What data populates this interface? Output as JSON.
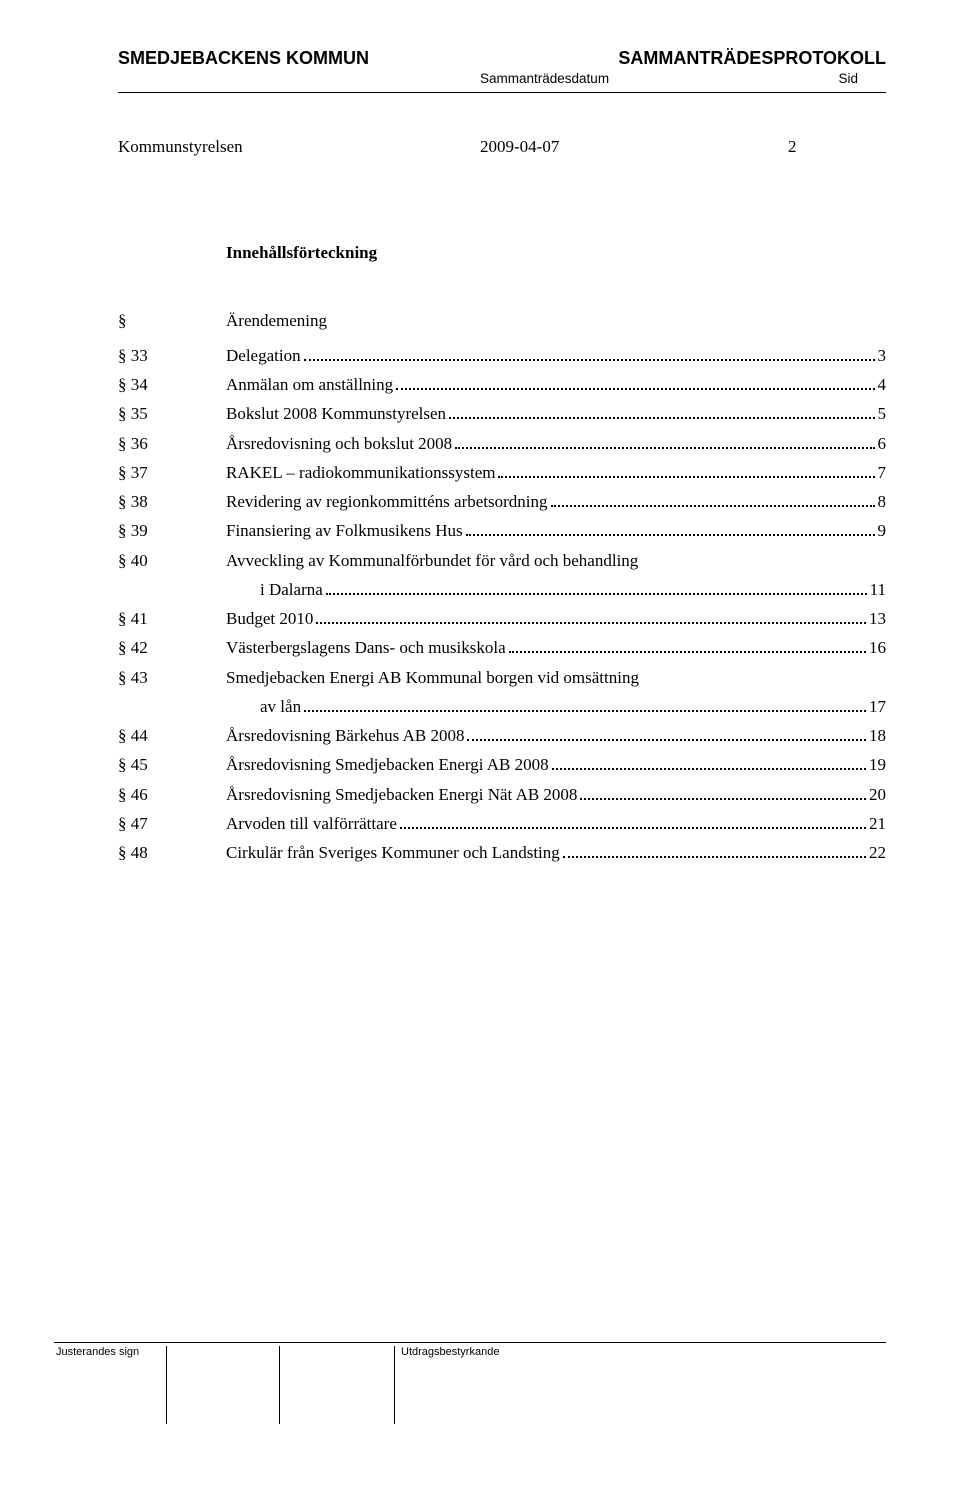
{
  "header": {
    "org_left": "SMEDJEBACKENS KOMMUN",
    "org_right": "SAMMANTRÄDESPROTOKOLL",
    "sub_left": "Sammanträdesdatum",
    "sub_right": "Sid"
  },
  "meeting": {
    "name": "Kommunstyrelsen",
    "date": "2009-04-07",
    "page": "2"
  },
  "toc": {
    "title": "Innehållsförteckning",
    "section_symbol": "§",
    "heading_label": "Ärendemening",
    "items": [
      {
        "section": "§ 33",
        "text": "Delegation",
        "page": "3"
      },
      {
        "section": "§ 34",
        "text": "Anmälan om anställning",
        "page": "4"
      },
      {
        "section": "§ 35",
        "text": "Bokslut 2008 Kommunstyrelsen",
        "page": "5"
      },
      {
        "section": "§ 36",
        "text": "Årsredovisning och bokslut 2008",
        "page": "6"
      },
      {
        "section": "§ 37",
        "text": "RAKEL – radiokommunikationssystem",
        "page": "7"
      },
      {
        "section": "§ 38",
        "text": "Revidering av regionkommitténs arbetsordning",
        "page": "8"
      },
      {
        "section": "§ 39",
        "text": "Finansiering av Folkmusikens Hus",
        "page": "9"
      },
      {
        "section": "§ 40",
        "text_line1": "Avveckling av Kommunalförbundet för vård och behandling",
        "text_line2": "i Dalarna",
        "page": "11",
        "multiline": true
      },
      {
        "section": "§ 41",
        "text": "Budget 2010",
        "page": "13"
      },
      {
        "section": "§ 42",
        "text": "Västerbergslagens Dans- och musikskola",
        "page": "16"
      },
      {
        "section": "§ 43",
        "text_line1": "Smedjebacken Energi AB Kommunal borgen vid omsättning",
        "text_line2": "av lån",
        "page": "17",
        "multiline": true
      },
      {
        "section": "§ 44",
        "text": "Årsredovisning Bärkehus AB 2008",
        "page": "18"
      },
      {
        "section": "§ 45",
        "text": "Årsredovisning Smedjebacken Energi AB 2008",
        "page": "19"
      },
      {
        "section": "§ 46",
        "text": "Årsredovisning Smedjebacken Energi Nät AB 2008",
        "page": "20"
      },
      {
        "section": "§ 47",
        "text": "Arvoden till valförrättare",
        "page": "21"
      },
      {
        "section": "§ 48",
        "text": "Cirkulär från Sveriges Kommuner och Landsting",
        "page": "22"
      }
    ]
  },
  "footer": {
    "left_label": "Justerandes sign",
    "right_label": "Utdragsbestyrkande"
  }
}
